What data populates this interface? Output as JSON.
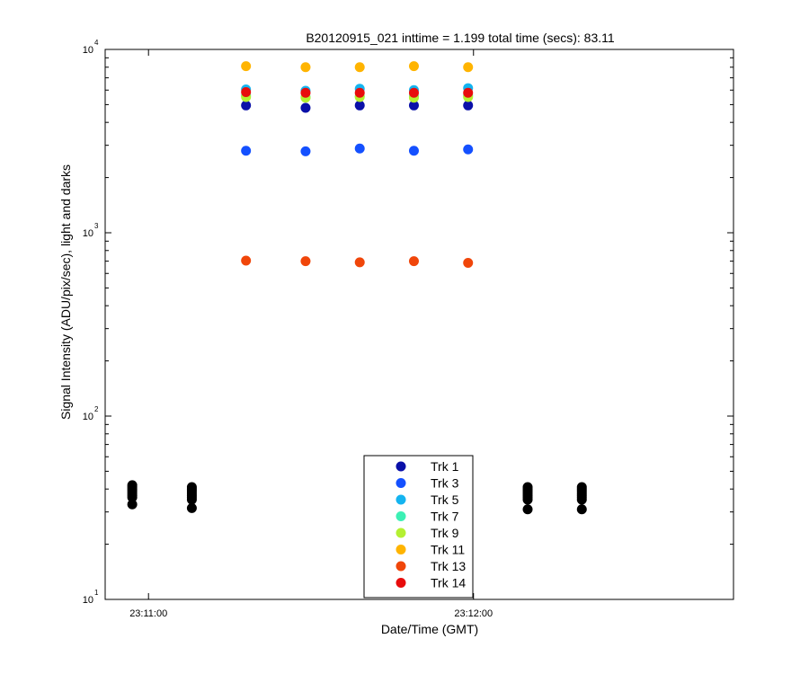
{
  "chart_data": {
    "type": "scatter",
    "title": "B20120915_021 inttime = 1.199 total time (secs): 83.11",
    "xlabel": "Date/Time (GMT)",
    "ylabel": "Signal Intensity (ADU/pix/sec), light and darks",
    "y_scale": "log",
    "ylim": [
      10,
      10000
    ],
    "xlim": [
      "23:10:52",
      "23:12:48"
    ],
    "x_ticks": [
      "23:11:00",
      "23:12:00"
    ],
    "y_ticks": [
      {
        "base": "10",
        "exp": "1"
      },
      {
        "base": "10",
        "exp": "2"
      },
      {
        "base": "10",
        "exp": "3"
      },
      {
        "base": "10",
        "exp": "4"
      }
    ],
    "grid": false,
    "legend_position": "bottom-center",
    "light_times": [
      "23:11:18",
      "23:11:29",
      "23:11:39",
      "23:11:49",
      "23:11:59"
    ],
    "series": [
      {
        "name": "Trk 1",
        "color": "#0a10a8",
        "values": [
          4950,
          4800,
          4950,
          4950,
          4950
        ]
      },
      {
        "name": "Trk 3",
        "color": "#1450ff",
        "values": [
          2800,
          2780,
          2880,
          2800,
          2850
        ]
      },
      {
        "name": "Trk 5",
        "color": "#14b4f0",
        "values": [
          6050,
          5950,
          6100,
          6000,
          6150
        ]
      },
      {
        "name": "Trk 7",
        "color": "#3cf0b4",
        "values": [
          5600,
          5500,
          5550,
          5550,
          5600
        ]
      },
      {
        "name": "Trk 9",
        "color": "#b4f032",
        "values": [
          5500,
          5450,
          5500,
          5450,
          5500
        ]
      },
      {
        "name": "Trk 11",
        "color": "#ffb400",
        "values": [
          8100,
          8000,
          8000,
          8100,
          8000
        ]
      },
      {
        "name": "Trk 13",
        "color": "#f0460a",
        "values": [
          705,
          700,
          690,
          700,
          685
        ]
      },
      {
        "name": "Trk 14",
        "color": "#e80c0c",
        "values": [
          5850,
          5800,
          5800,
          5800,
          5800
        ]
      }
    ],
    "darks": {
      "color": "#000000",
      "times": [
        "23:10:57",
        "23:11:08",
        "23:12:10",
        "23:12:20"
      ],
      "values": [
        [
          33,
          36,
          37,
          38,
          39,
          40,
          41,
          42
        ],
        [
          31.5,
          35,
          36,
          37,
          38,
          39,
          40,
          41
        ],
        [
          31,
          35,
          36,
          37,
          38,
          39,
          40,
          41
        ],
        [
          31,
          35,
          36,
          37,
          38,
          39,
          40,
          41
        ]
      ]
    }
  }
}
